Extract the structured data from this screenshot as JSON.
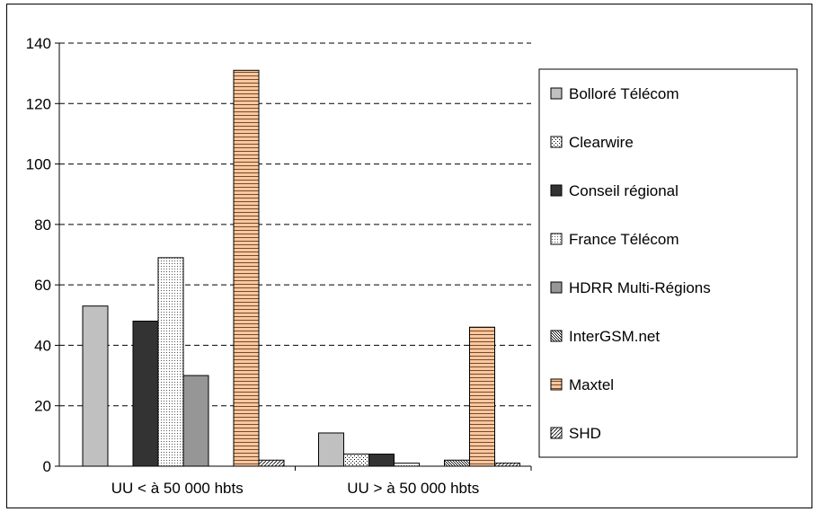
{
  "chart_data": {
    "type": "bar",
    "title": "",
    "xlabel": "",
    "ylabel": "",
    "ylim": [
      0,
      140
    ],
    "yticks": [
      0,
      20,
      40,
      60,
      80,
      100,
      120,
      140
    ],
    "grid": "horizontal dashed",
    "legend_position": "right",
    "categories": [
      "UU < à 50 000 hbts",
      "UU > à 50 000 hbts"
    ],
    "series": [
      {
        "name": "Bolloré Télécom",
        "values": [
          53,
          11
        ],
        "color": "#c0c0c0",
        "pattern": "solid"
      },
      {
        "name": "Clearwire",
        "values": [
          0,
          4
        ],
        "color": "#ffffff",
        "pattern": "dots"
      },
      {
        "name": "Conseil régional",
        "values": [
          48,
          4
        ],
        "color": "#333333",
        "pattern": "solid"
      },
      {
        "name": "France Télécom",
        "values": [
          69,
          1
        ],
        "color": "#ffffff",
        "pattern": "fine-dots"
      },
      {
        "name": "HDRR Multi-Régions",
        "values": [
          30,
          0
        ],
        "color": "#969696",
        "pattern": "solid"
      },
      {
        "name": "InterGSM.net",
        "values": [
          0,
          2
        ],
        "color": "#d0d0d0",
        "pattern": "crosshatch"
      },
      {
        "name": "Maxtel",
        "values": [
          131,
          46
        ],
        "color": "#f8c8a0",
        "pattern": "horizontal-stripes"
      },
      {
        "name": "SHD",
        "values": [
          2,
          1
        ],
        "color": "#e0e0e0",
        "pattern": "diagonal"
      }
    ]
  }
}
